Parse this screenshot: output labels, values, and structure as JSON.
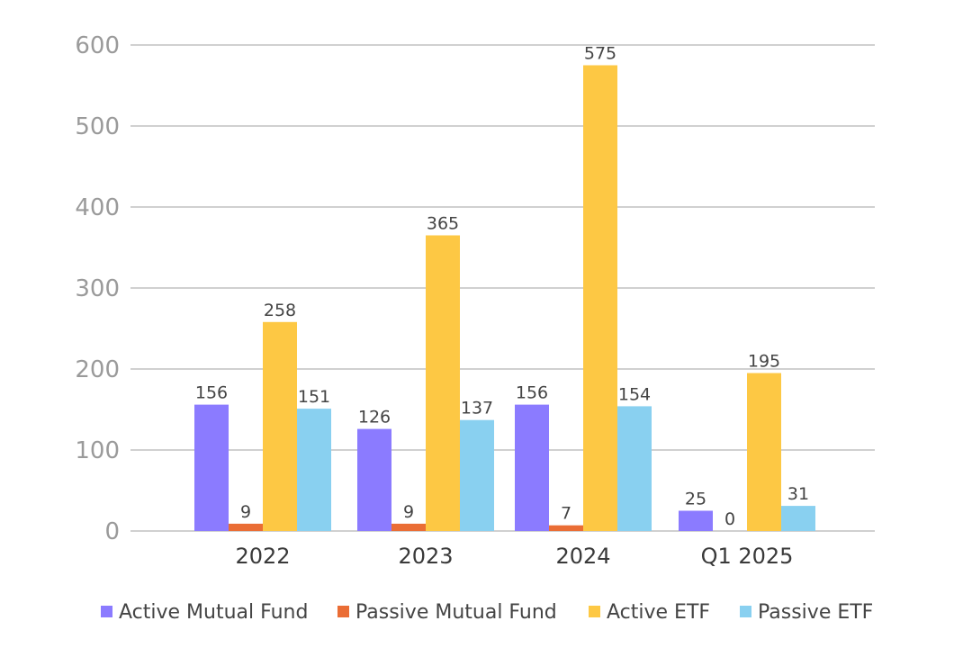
{
  "chart_data": {
    "type": "bar",
    "categories": [
      "2022",
      "2023",
      "2024",
      "Q1 2025"
    ],
    "series": [
      {
        "name": "Active Mutual Fund",
        "values": [
          156,
          126,
          156,
          25
        ],
        "color": "#8b7bff"
      },
      {
        "name": "Passive Mutual Fund",
        "values": [
          9,
          9,
          7,
          0
        ],
        "color": "#ea6d35"
      },
      {
        "name": "Active ETF",
        "values": [
          258,
          365,
          575,
          195
        ],
        "color": "#fdc844"
      },
      {
        "name": "Passive ETF",
        "values": [
          151,
          137,
          154,
          31
        ],
        "color": "#89d0f0"
      }
    ],
    "ylim": [
      0,
      600
    ],
    "yticks": [
      0,
      100,
      200,
      300,
      400,
      500,
      600
    ],
    "title": "",
    "xlabel": "",
    "ylabel": "",
    "grid": true,
    "legend_position": "bottom"
  }
}
